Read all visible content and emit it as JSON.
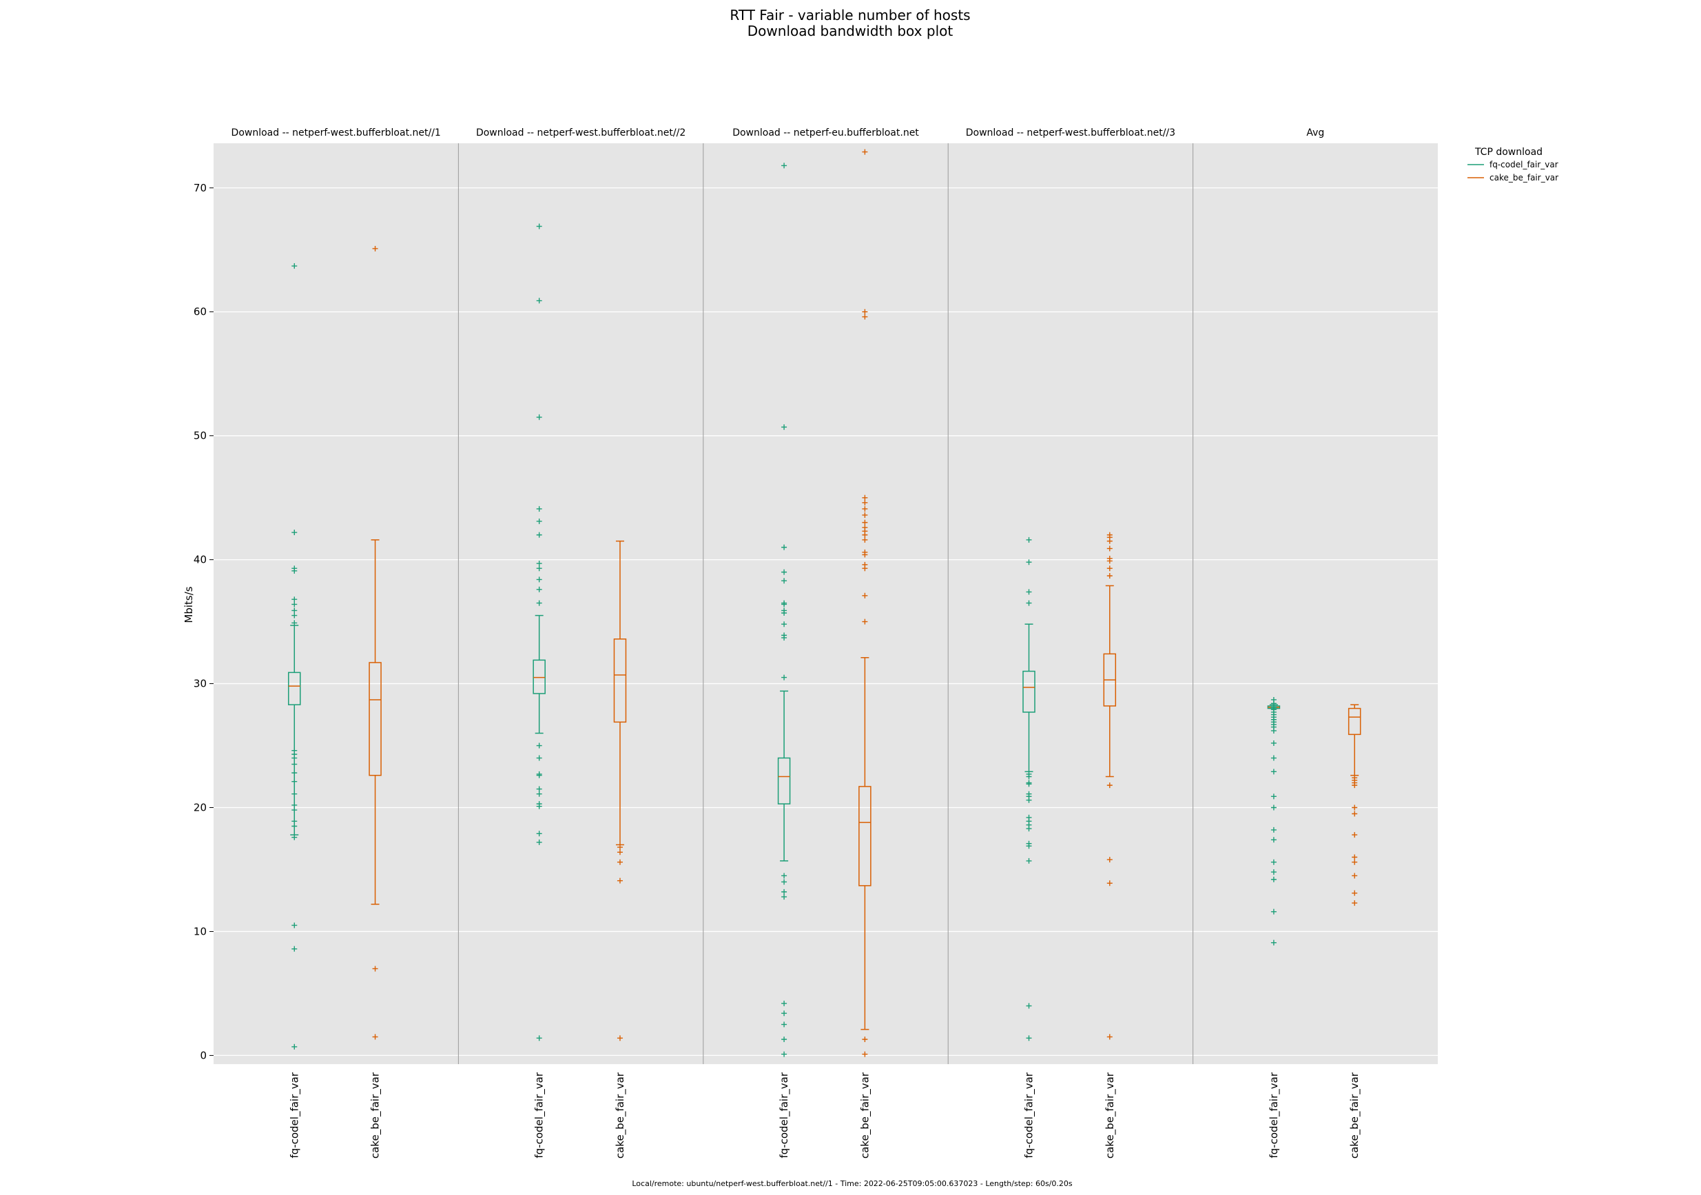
{
  "chart_data": {
    "type": "box",
    "title": "RTT Fair - variable number of hosts",
    "subtitle": "Download bandwidth box plot",
    "ylabel": "Mbits/s",
    "ylim": [
      -0.7,
      73.6
    ],
    "yticks": [
      0,
      10,
      20,
      30,
      40,
      50,
      60,
      70
    ],
    "grid": true,
    "legend": {
      "title": "TCP download",
      "position": "top-right outside",
      "entries": [
        "fq-codel_fair_var",
        "cake_be_fair_var"
      ]
    },
    "series_colors": {
      "fq-codel_fair_var": "#1b9e77",
      "cake_be_fair_var": "#d95f02"
    },
    "categories": [
      "fq-codel_fair_var",
      "cake_be_fair_var"
    ],
    "panels": [
      {
        "title": "Download -- netperf-west.bufferbloat.net//1",
        "boxes": [
          {
            "series": "fq-codel_fair_var",
            "whisker_low": 17.8,
            "q1": 28.3,
            "median": 29.8,
            "q3": 30.9,
            "whisker_high": 34.7,
            "outliers": [
              63.7,
              42.2,
              39.3,
              39.1,
              36.8,
              36.4,
              35.9,
              35.5,
              34.9,
              24.6,
              24.3,
              24.0,
              23.5,
              22.8,
              22.1,
              21.1,
              20.2,
              19.8,
              18.9,
              18.5,
              17.6,
              10.5,
              8.6,
              0.7
            ]
          },
          {
            "series": "cake_be_fair_var",
            "whisker_low": 12.2,
            "q1": 22.6,
            "median": 28.7,
            "q3": 31.7,
            "whisker_high": 41.6,
            "outliers": [
              65.1,
              7.0,
              1.5
            ]
          }
        ]
      },
      {
        "title": "Download -- netperf-west.bufferbloat.net//2",
        "boxes": [
          {
            "series": "fq-codel_fair_var",
            "whisker_low": 26.0,
            "q1": 29.2,
            "median": 30.5,
            "q3": 31.9,
            "whisker_high": 35.5,
            "outliers": [
              66.9,
              60.9,
              51.5,
              44.1,
              43.1,
              42.0,
              39.7,
              39.3,
              38.4,
              37.6,
              36.5,
              25.0,
              24.0,
              22.7,
              22.6,
              21.5,
              21.1,
              20.3,
              20.1,
              17.9,
              17.2,
              1.4
            ]
          },
          {
            "series": "cake_be_fair_var",
            "whisker_low": 17.0,
            "q1": 26.9,
            "median": 30.7,
            "q3": 33.6,
            "whisker_high": 41.5,
            "outliers": [
              16.8,
              16.4,
              15.6,
              14.1,
              1.4
            ]
          }
        ]
      },
      {
        "title": "Download -- netperf-eu.bufferbloat.net",
        "boxes": [
          {
            "series": "fq-codel_fair_var",
            "whisker_low": 15.7,
            "q1": 20.3,
            "median": 22.5,
            "q3": 24.0,
            "whisker_high": 29.4,
            "outliers": [
              71.8,
              50.7,
              41.0,
              39.0,
              38.3,
              36.5,
              36.4,
              35.9,
              35.7,
              34.8,
              33.9,
              33.7,
              30.5,
              14.5,
              14.0,
              13.2,
              12.8,
              4.2,
              3.4,
              2.5,
              1.3,
              0.1
            ]
          },
          {
            "series": "cake_be_fair_var",
            "whisker_low": 2.1,
            "q1": 13.7,
            "median": 18.8,
            "q3": 21.7,
            "whisker_high": 32.1,
            "outliers": [
              72.9,
              60.0,
              59.6,
              45.0,
              44.6,
              44.1,
              43.6,
              43.0,
              42.6,
              42.3,
              42.0,
              41.6,
              40.6,
              40.4,
              39.6,
              39.3,
              37.1,
              35.0,
              1.3,
              0.1
            ]
          }
        ]
      },
      {
        "title": "Download -- netperf-west.bufferbloat.net//3",
        "boxes": [
          {
            "series": "fq-codel_fair_var",
            "whisker_low": 22.9,
            "q1": 27.7,
            "median": 29.7,
            "q3": 31.0,
            "whisker_high": 34.8,
            "outliers": [
              41.6,
              39.8,
              37.4,
              36.5,
              22.7,
              22.5,
              22.0,
              21.9,
              21.1,
              20.9,
              20.6,
              19.2,
              18.9,
              18.6,
              18.3,
              17.1,
              16.9,
              15.7,
              4.0,
              1.4
            ]
          },
          {
            "series": "cake_be_fair_var",
            "whisker_low": 22.5,
            "q1": 28.2,
            "median": 30.3,
            "q3": 32.4,
            "whisker_high": 37.9,
            "outliers": [
              42.0,
              41.8,
              41.5,
              40.9,
              40.1,
              39.9,
              39.3,
              38.7,
              21.8,
              15.8,
              13.9,
              1.5
            ]
          }
        ]
      },
      {
        "title": "Avg",
        "boxes": [
          {
            "series": "fq-codel_fair_var",
            "whisker_low": 28.0,
            "q1": 28.0,
            "median": 28.1,
            "q3": 28.2,
            "whisker_high": 28.3,
            "outliers": [
              28.7,
              28.4,
              28.1,
              27.9,
              27.7,
              27.5,
              27.3,
              27.1,
              26.9,
              26.7,
              26.5,
              26.2,
              25.2,
              24.0,
              22.9,
              20.9,
              20.0,
              18.2,
              17.4,
              15.6,
              14.8,
              14.2,
              11.6,
              9.1
            ]
          },
          {
            "series": "cake_be_fair_var",
            "whisker_low": 22.6,
            "q1": 25.9,
            "median": 27.3,
            "q3": 28.0,
            "whisker_high": 28.3,
            "outliers": [
              22.4,
              22.2,
              22.0,
              21.8,
              20.0,
              19.5,
              17.8,
              16.0,
              15.6,
              14.5,
              13.1,
              12.3
            ]
          }
        ]
      }
    ]
  },
  "footer": "Local/remote: ubuntu/netperf-west.bufferbloat.net//1 - Time: 2022-06-25T09:05:00.637023 - Length/step: 60s/0.20s"
}
